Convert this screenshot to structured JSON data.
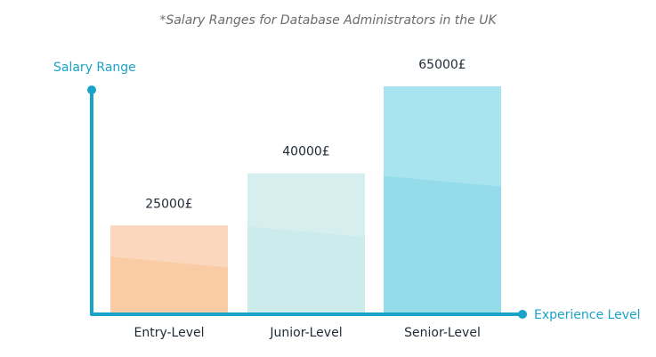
{
  "chart_data": {
    "type": "bar",
    "title": "*Salary Ranges for Database Administrators in the UK",
    "ylabel": "Salary Range",
    "xlabel": "Experience Level",
    "categories": [
      "Entry-Level",
      "Junior-Level",
      "Senior-Level"
    ],
    "values": [
      25000,
      40000,
      65000
    ],
    "value_labels": [
      "25000£",
      "40000£",
      "65000£"
    ],
    "ylim": [
      0,
      65000
    ],
    "grid": false,
    "colors": {
      "axis": "#1aa3c8",
      "bars": [
        {
          "top": "#fbd7bd",
          "bottom": "#f9cca6"
        },
        {
          "top": "#d7eeee",
          "bottom": "#cbebec"
        },
        {
          "top": "#a7e4ef",
          "bottom": "#94dcea"
        }
      ]
    }
  }
}
